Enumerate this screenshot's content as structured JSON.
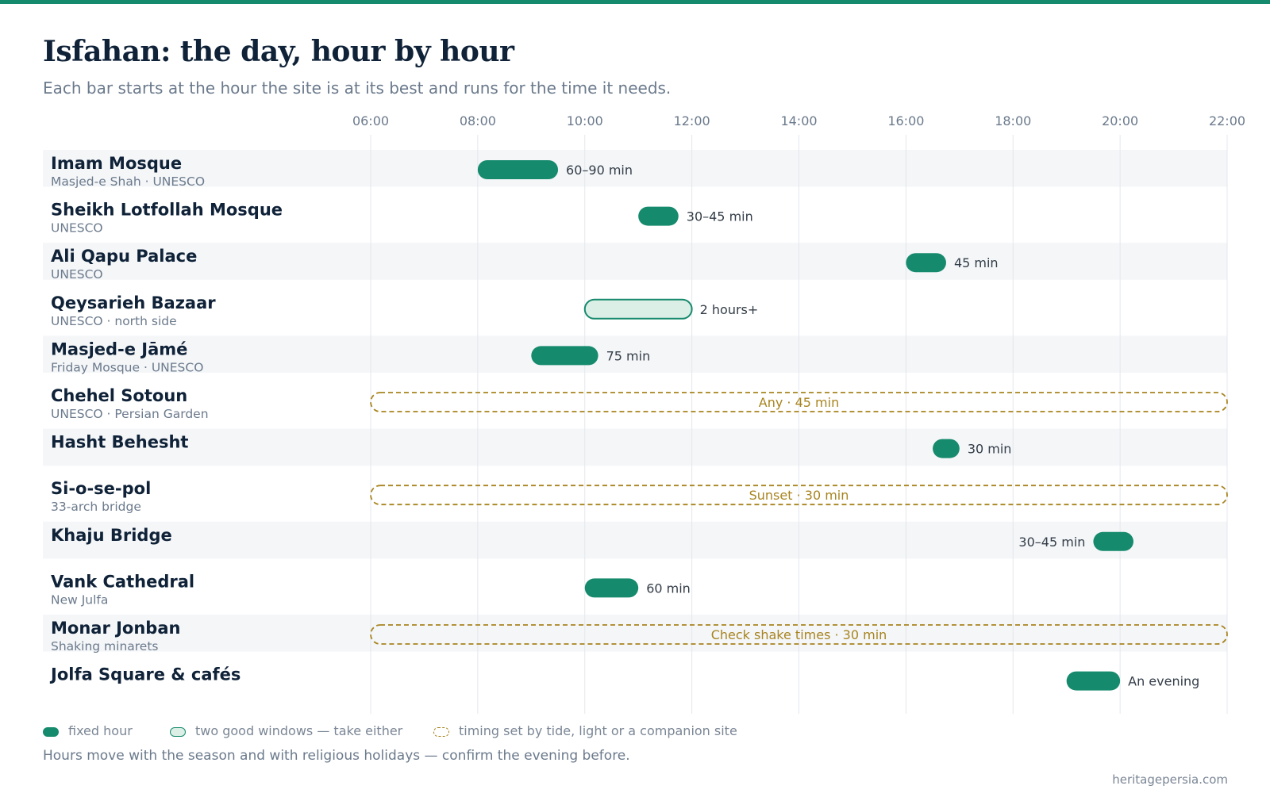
{
  "title": "Isfahan: the day, hour by hour",
  "subtitle": "Each bar starts at the hour the site is at its best and runs for the time it needs.",
  "colors": {
    "accent": "#168a6d",
    "accent_light": "#dcefe6",
    "flex": "#a8841f",
    "title": "#0f2238",
    "muted": "#6b7a8c",
    "row_shade": "#f4f6f8",
    "grid": "#e3e7ec"
  },
  "chart_data": {
    "type": "gantt",
    "x_axis": {
      "unit": "hour",
      "range": [
        6,
        22
      ],
      "ticks": [
        "06:00",
        "08:00",
        "10:00",
        "12:00",
        "14:00",
        "16:00",
        "18:00",
        "20:00",
        "22:00"
      ]
    },
    "grid": true,
    "rows": [
      {
        "name": "Imam Mosque",
        "detail": "Masjed-e Shah · UNESCO",
        "kind": "fixed",
        "start": 8.0,
        "end": 9.5,
        "label": "60–90 min"
      },
      {
        "name": "Sheikh Lotfollah Mosque",
        "detail": "UNESCO",
        "kind": "fixed",
        "start": 11.0,
        "end": 11.75,
        "label": "30–45 min"
      },
      {
        "name": "Ali Qapu Palace",
        "detail": "UNESCO",
        "kind": "fixed",
        "start": 16.0,
        "end": 16.75,
        "label": "45 min"
      },
      {
        "name": "Qeysarieh Bazaar",
        "detail": "UNESCO · north side",
        "kind": "window",
        "start": 10.0,
        "end": 12.0,
        "label": "2 hours+"
      },
      {
        "name": "Masjed-e Jāmé",
        "detail": "Friday Mosque · UNESCO",
        "kind": "fixed",
        "start": 9.0,
        "end": 10.25,
        "label": "75 min"
      },
      {
        "name": "Chehel Sotoun",
        "detail": "UNESCO · Persian Garden",
        "kind": "flex",
        "start": 6.0,
        "end": 22.0,
        "label": "Any · 45 min"
      },
      {
        "name": "Hasht Behesht",
        "detail": "",
        "kind": "fixed",
        "start": 16.5,
        "end": 17.0,
        "label": "30 min"
      },
      {
        "name": "Si-o-se-pol",
        "detail": "33-arch bridge",
        "kind": "flex",
        "start": 6.0,
        "end": 22.0,
        "label": "Sunset · 30 min"
      },
      {
        "name": "Khaju Bridge",
        "detail": "",
        "kind": "fixed",
        "start": 19.5,
        "end": 20.25,
        "label": "30–45 min",
        "label_side": "left"
      },
      {
        "name": "Vank Cathedral",
        "detail": "New Julfa",
        "kind": "fixed",
        "start": 10.0,
        "end": 11.0,
        "label": "60 min"
      },
      {
        "name": "Monar Jonban",
        "detail": "Shaking minarets",
        "kind": "flex",
        "start": 6.0,
        "end": 22.0,
        "label": "Check shake times · 30 min"
      },
      {
        "name": "Jolfa Square & cafés",
        "detail": "",
        "kind": "fixed",
        "start": 19.0,
        "end": 20.0,
        "label": "An evening"
      }
    ]
  },
  "legend": [
    {
      "kind": "fixed",
      "label": "fixed hour"
    },
    {
      "kind": "window",
      "label": "two good windows — take either"
    },
    {
      "kind": "flex",
      "label": "timing set by tide, light or a companion site"
    }
  ],
  "footnote": "Hours move with the season and with religious holidays — confirm the evening before.",
  "source": "heritagepersia.com"
}
